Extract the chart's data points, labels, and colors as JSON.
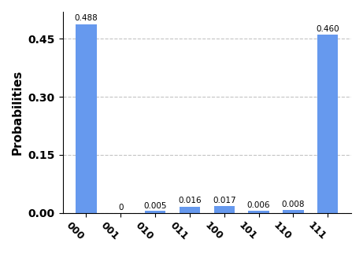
{
  "categories": [
    "000",
    "001",
    "010",
    "011",
    "100",
    "101",
    "110",
    "111"
  ],
  "values": [
    0.488,
    0.0,
    0.005,
    0.016,
    0.017,
    0.006,
    0.008,
    0.46
  ],
  "bar_color": "#6699ee",
  "ylabel": "Probabilities",
  "ylim": [
    0,
    0.52
  ],
  "yticks": [
    0.0,
    0.15,
    0.3,
    0.45
  ],
  "grid": true,
  "bar_width": 0.6,
  "label_fontsize": 7.5,
  "ylabel_fontsize": 11,
  "ytick_fontsize": 10,
  "xtick_fontsize": 9,
  "value_labels": [
    "0.488",
    "0",
    "0.005",
    "0.016",
    "0.017",
    "0.006",
    "0.008",
    "0.460"
  ]
}
